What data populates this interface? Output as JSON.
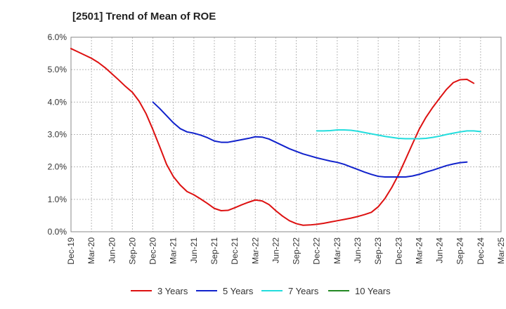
{
  "chart_data": {
    "type": "line",
    "title": "[2501]  Trend of Mean of ROE",
    "xlabel": "",
    "ylabel": "",
    "x_tick_labels": [
      "Dec-19",
      "Mar-20",
      "Jun-20",
      "Sep-20",
      "Dec-20",
      "Mar-21",
      "Jun-21",
      "Sep-21",
      "Dec-21",
      "Mar-22",
      "Jun-22",
      "Sep-22",
      "Dec-22",
      "Mar-23",
      "Jun-23",
      "Sep-23",
      "Dec-23",
      "Mar-24",
      "Jun-24",
      "Sep-24",
      "Dec-24",
      "Mar-25"
    ],
    "y_tick_labels": [
      "0.0%",
      "1.0%",
      "2.0%",
      "3.0%",
      "4.0%",
      "5.0%",
      "6.0%"
    ],
    "ylim": [
      0,
      6
    ],
    "grid": true,
    "legend_position": "bottom",
    "series": [
      {
        "name": "3 Years",
        "color": "#dd1111",
        "start_index": 0,
        "values": [
          5.65,
          5.55,
          5.45,
          5.35,
          5.22,
          5.06,
          4.87,
          4.68,
          4.48,
          4.3,
          4.02,
          3.64,
          3.15,
          2.62,
          2.08,
          1.7,
          1.44,
          1.24,
          1.14,
          1.01,
          0.87,
          0.72,
          0.65,
          0.66,
          0.74,
          0.83,
          0.91,
          0.98,
          0.95,
          0.84,
          0.65,
          0.48,
          0.34,
          0.25,
          0.2,
          0.21,
          0.23,
          0.26,
          0.3,
          0.34,
          0.38,
          0.42,
          0.47,
          0.53,
          0.6,
          0.77,
          1.03,
          1.37,
          1.77,
          2.23,
          2.7,
          3.16,
          3.53,
          3.84,
          4.12,
          4.39,
          4.6,
          4.69,
          4.7,
          4.58
        ]
      },
      {
        "name": "5 Years",
        "color": "#1122cc",
        "start_index": 12,
        "values": [
          4.0,
          3.8,
          3.58,
          3.36,
          3.18,
          3.08,
          3.04,
          2.98,
          2.9,
          2.8,
          2.76,
          2.76,
          2.8,
          2.84,
          2.88,
          2.93,
          2.92,
          2.86,
          2.76,
          2.66,
          2.56,
          2.48,
          2.4,
          2.34,
          2.28,
          2.23,
          2.18,
          2.14,
          2.08,
          2.0,
          1.92,
          1.84,
          1.77,
          1.71,
          1.69,
          1.69,
          1.69,
          1.69,
          1.72,
          1.77,
          1.84,
          1.9,
          1.97,
          2.04,
          2.09,
          2.13,
          2.15
        ]
      },
      {
        "name": "7 Years",
        "color": "#22dddd",
        "start_index": 36,
        "values": [
          3.11,
          3.11,
          3.12,
          3.14,
          3.14,
          3.13,
          3.1,
          3.06,
          3.02,
          2.98,
          2.94,
          2.91,
          2.88,
          2.87,
          2.87,
          2.87,
          2.88,
          2.91,
          2.95,
          3.0,
          3.04,
          3.08,
          3.11,
          3.11,
          3.09
        ]
      },
      {
        "name": "10 Years",
        "color": "#228822",
        "start_index": 0,
        "values": []
      }
    ]
  }
}
